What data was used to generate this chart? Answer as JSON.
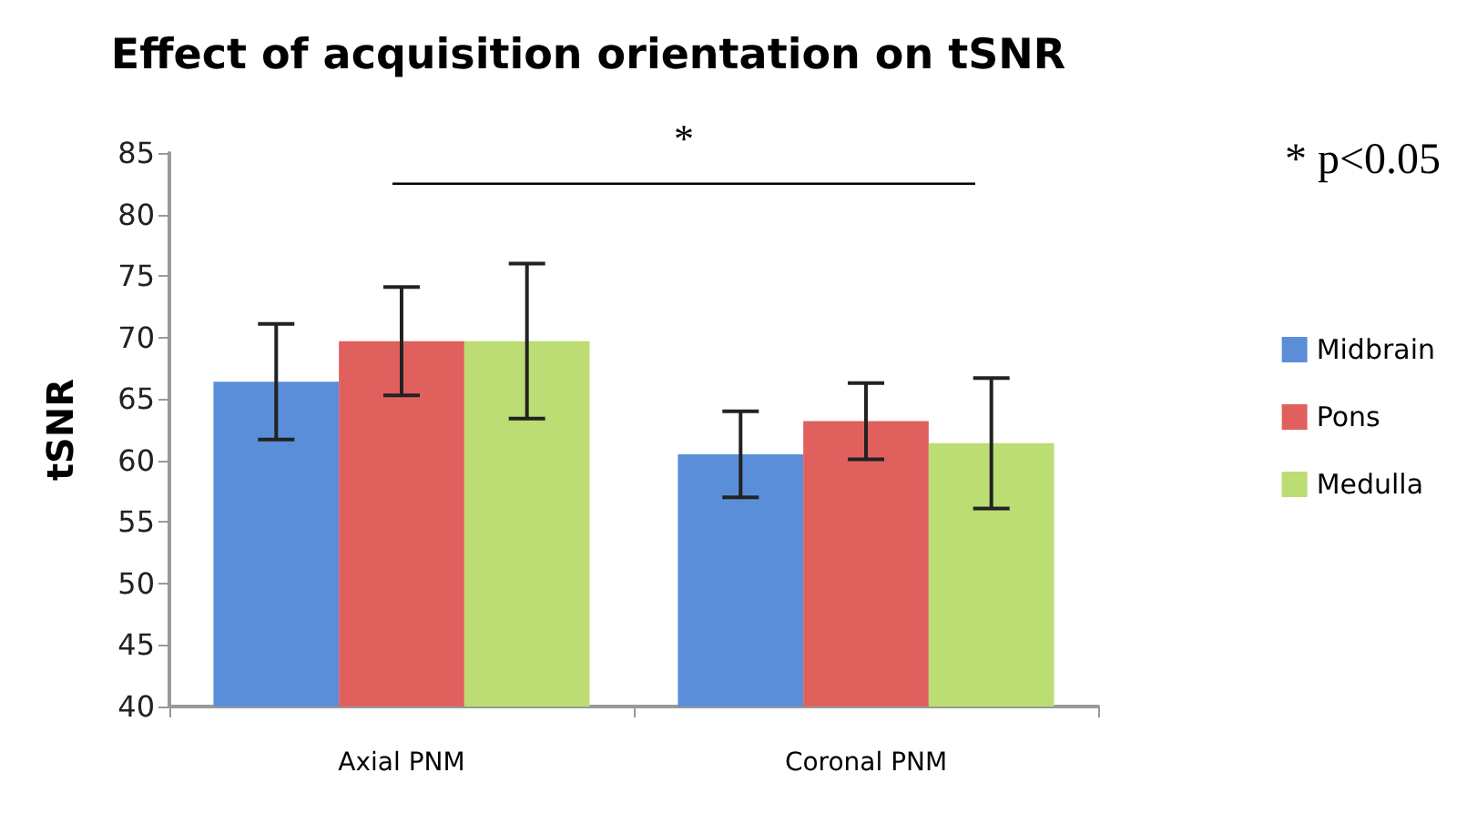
{
  "chart_data": {
    "type": "bar",
    "title": "Effect of acquisition orientation on tSNR",
    "ylabel": "tSNR",
    "categories": [
      "Axial PNM",
      "Coronal PNM"
    ],
    "series": [
      {
        "name": "Midbrain",
        "color": "#5b8ed8",
        "values": [
          66.4,
          60.5
        ],
        "errors": [
          4.7,
          3.5
        ]
      },
      {
        "name": "Pons",
        "color": "#e0605e",
        "values": [
          69.7,
          63.2
        ],
        "errors": [
          4.4,
          3.1
        ]
      },
      {
        "name": "Medulla",
        "color": "#bcdc74",
        "values": [
          69.7,
          61.4
        ],
        "errors": [
          6.3,
          5.3
        ]
      }
    ],
    "ylim": [
      40,
      85
    ],
    "yticks": [
      40,
      45,
      50,
      55,
      60,
      65,
      70,
      75,
      80,
      85
    ],
    "grid": false,
    "legend": "right",
    "annotations": [
      "*",
      "* p<0.05"
    ]
  }
}
